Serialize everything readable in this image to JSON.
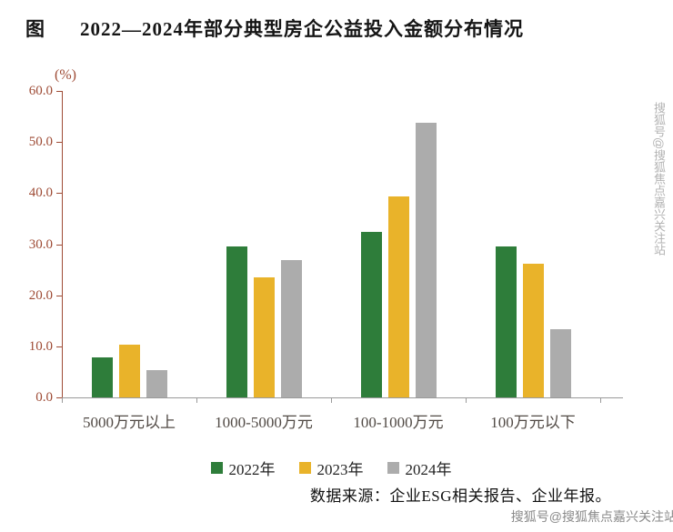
{
  "header": {
    "figure_label": "图",
    "title": "2022—2024年部分典型房企公益投入金额分布情况"
  },
  "chart_data": {
    "type": "bar",
    "title": "2022—2024年部分典型房企公益投入金额分布情况",
    "categories": [
      "5000万元以上",
      "1000-5000万元",
      "100-1000万元",
      "100万元以下"
    ],
    "series": [
      {
        "name": "2022年",
        "color": "#2e7d3a",
        "values": [
          7.9,
          29.5,
          32.4,
          29.5
        ]
      },
      {
        "name": "2023年",
        "color": "#e9b32a",
        "values": [
          10.3,
          23.5,
          39.4,
          26.2
        ]
      },
      {
        "name": "2024年",
        "color": "#acacac",
        "values": [
          5.3,
          26.9,
          53.8,
          13.3
        ]
      }
    ],
    "ylabel": "(%)",
    "ylim": [
      0,
      60
    ],
    "yticks": [
      0,
      10,
      20,
      30,
      40,
      50,
      60
    ],
    "ytick_labels": [
      "0.0",
      "10.0",
      "20.0",
      "30.0",
      "40.0",
      "50.0",
      "60.0"
    ],
    "grid": false,
    "legend_position": "bottom"
  },
  "footer": {
    "source": "数据来源：企业ESG相关报告、企业年报。"
  },
  "watermarks": {
    "vertical": "搜狐号@搜狐焦点嘉兴关注站",
    "horizontal": "搜狐号@搜狐焦点嘉兴关注站"
  }
}
